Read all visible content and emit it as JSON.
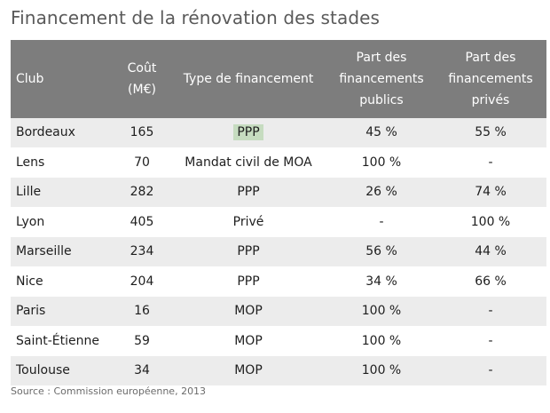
{
  "title": "Financement de la rénovation des stades",
  "table": {
    "headers": {
      "club": "Club",
      "cost_line1": "Coût",
      "cost_line2": "(M€)",
      "type": "Type de financement",
      "public_line1": "Part des",
      "public_line2": "financements",
      "public_line3": "publics",
      "private_line1": "Part des",
      "private_line2": "financements",
      "private_line3": "privés"
    },
    "rows": [
      {
        "club": "Bordeaux",
        "cost": "165",
        "type": "PPP",
        "public": "45 %",
        "private": "55 %"
      },
      {
        "club": "Lens",
        "cost": "70",
        "type": "Mandat civil de MOA",
        "public": "100 %",
        "private": "-"
      },
      {
        "club": "Lille",
        "cost": "282",
        "type": "PPP",
        "public": "26 %",
        "private": "74 %"
      },
      {
        "club": "Lyon",
        "cost": "405",
        "type": "Privé",
        "public": "-",
        "private": "100 %"
      },
      {
        "club": "Marseille",
        "cost": "234",
        "type": "PPP",
        "public": "56 %",
        "private": "44 %"
      },
      {
        "club": "Nice",
        "cost": "204",
        "type": "PPP",
        "public": "34 %",
        "private": "66 %"
      },
      {
        "club": "Paris",
        "cost": "16",
        "type": "MOP",
        "public": "100 %",
        "private": "-"
      },
      {
        "club": "Saint-Étienne",
        "cost": "59",
        "type": "MOP",
        "public": "100 %",
        "private": "-"
      },
      {
        "club": "Toulouse",
        "cost": "34",
        "type": "MOP",
        "public": "100 %",
        "private": "-"
      }
    ]
  },
  "source": "Source : Commission européenne, 2013",
  "colors": {
    "header_bg": "#7d7d7d",
    "stripe_bg": "#ececec",
    "highlight_bg": "#c6dcc0",
    "title_color": "#5a5a5a"
  }
}
